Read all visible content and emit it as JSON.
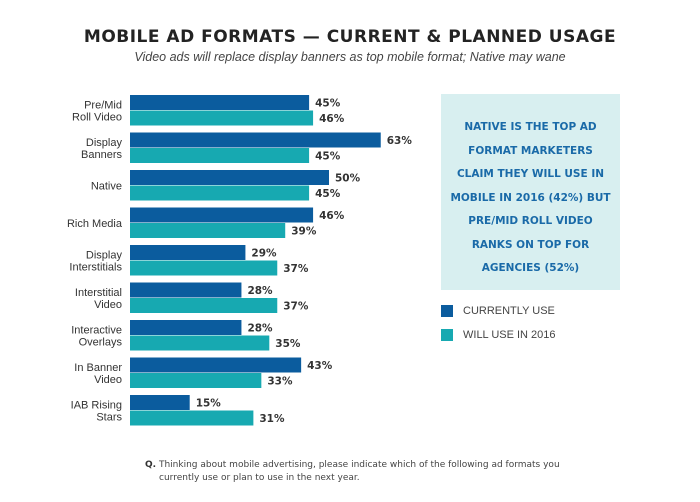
{
  "chart_data": {
    "type": "bar",
    "orientation": "horizontal",
    "title": "MOBILE AD FORMATS — CURRENT & PLANNED USAGE",
    "subtitle": "Video ads will replace display banners as top mobile format; Native may wane",
    "categories": [
      "Pre/Mid\nRoll Video",
      "Display\nBanners",
      "Native",
      "Rich Media",
      "Display\nInterstitials",
      "Interstitial\nVideo",
      "Interactive\nOverlays",
      "In Banner\nVideo",
      "IAB Rising\nStars"
    ],
    "series": [
      {
        "name": "CURRENTLY USE",
        "color": "#0b5c9e",
        "values": [
          45,
          63,
          50,
          46,
          29,
          28,
          28,
          43,
          15
        ]
      },
      {
        "name": "WILL USE IN 2016",
        "color": "#17a9b1",
        "values": [
          46,
          45,
          45,
          39,
          37,
          37,
          35,
          33,
          31
        ]
      }
    ],
    "value_suffix": "%",
    "xlabel": "",
    "ylabel": "",
    "xlim": [
      0,
      100
    ],
    "grid": false,
    "legend": "right"
  },
  "callout": "NATIVE IS THE TOP AD FORMAT MARKETERS CLAIM THEY WILL USE IN MOBILE IN 2016 (42%) BUT PRE/MID ROLL VIDEO RANKS ON TOP FOR AGENCIES (52%)",
  "footnote": {
    "prefix": "Q.",
    "text": "Thinking about mobile advertising, please indicate which of the following ad formats you currently use or plan to use in the next year."
  }
}
